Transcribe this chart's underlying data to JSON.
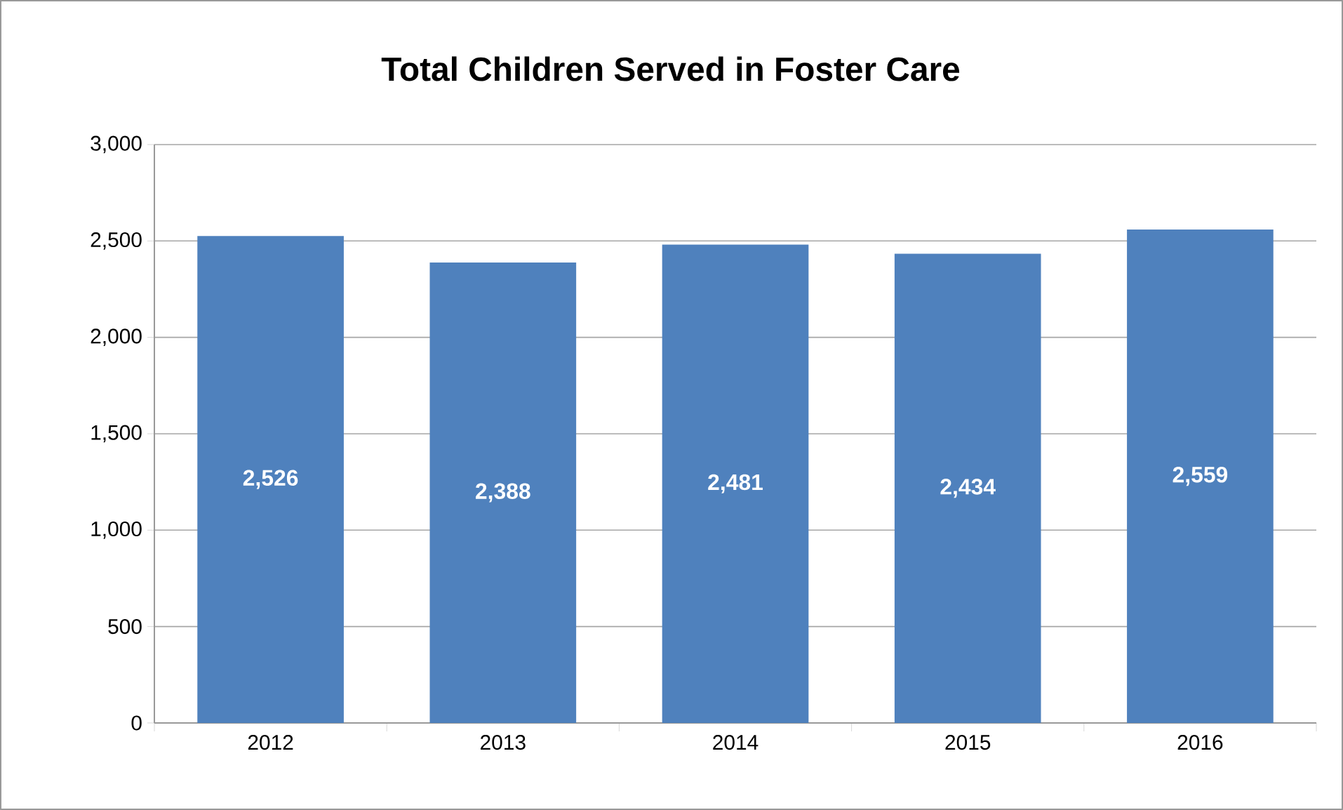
{
  "chart_data": {
    "type": "bar",
    "title": "Total Children Served in Foster Care",
    "categories": [
      "2012",
      "2013",
      "2014",
      "2015",
      "2016"
    ],
    "values": [
      2526,
      2388,
      2481,
      2434,
      2559
    ],
    "value_labels": [
      "2,526",
      "2,388",
      "2,481",
      "2,434",
      "2,559"
    ],
    "color": "#4f81bd",
    "ylim": [
      0,
      3000
    ],
    "yticks": [
      0,
      {
        "value": 500,
        "label": "500"
      },
      {
        "value": 1000,
        "label": "1,000"
      },
      {
        "value": 1500,
        "label": "1,500"
      },
      {
        "value": 2000,
        "label": "2,000"
      },
      {
        "value": 2500,
        "label": "2,500"
      },
      {
        "value": 3000,
        "label": "3,000"
      }
    ],
    "grid": "y"
  }
}
